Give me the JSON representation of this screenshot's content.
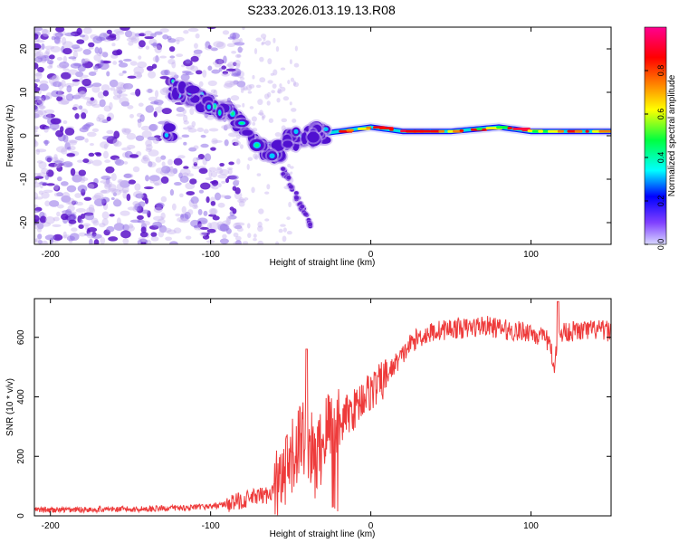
{
  "figure": {
    "title": "S233.2026.013.19.13.R08"
  },
  "colors": {
    "snr_line": "#ee3b3b",
    "spectrogram_faint": "#c8b4f0",
    "spectrogram_strong": "#5a14c8",
    "axis": "#000000"
  },
  "chart_data": [
    {
      "type": "heatmap",
      "name": "spectrogram",
      "title": "",
      "xlabel": "Height of straight line (km)",
      "ylabel": "Frequency (Hz)",
      "xlim": [
        -210,
        150
      ],
      "ylim": [
        -25,
        25
      ],
      "xticks": [
        -200,
        -100,
        0,
        100
      ],
      "yticks": [
        20,
        10,
        0,
        -10,
        -20
      ],
      "colorbar": {
        "label": "Normalized spectral amplitude",
        "range": [
          0,
          1
        ],
        "ticks": [
          0.0,
          0.2,
          0.4,
          0.6,
          0.8
        ],
        "colormap": [
          "#c8c8ff",
          "#7800ff",
          "#0000ff",
          "#00ffff",
          "#00ff00",
          "#ffff00",
          "#ff8000",
          "#ff0000",
          "#ff0080"
        ]
      },
      "ridge_track": {
        "description_points_km_hz": [
          [
            -125,
            11
          ],
          [
            -110,
            9
          ],
          [
            -95,
            6
          ],
          [
            -80,
            3
          ],
          [
            -70,
            -2
          ],
          [
            -60,
            -4
          ],
          [
            -50,
            -1
          ],
          [
            -40,
            0
          ],
          [
            -20,
            1
          ],
          [
            0,
            2
          ],
          [
            20,
            1
          ],
          [
            50,
            1
          ],
          [
            80,
            2
          ],
          [
            100,
            1
          ],
          [
            150,
            1
          ]
        ]
      },
      "branch_track": {
        "description_points_km_hz": [
          [
            -55,
            -8
          ],
          [
            -50,
            -11
          ],
          [
            -45,
            -15
          ],
          [
            -40,
            -19
          ],
          [
            -36,
            -22
          ]
        ]
      }
    },
    {
      "type": "line",
      "name": "snr",
      "title": "",
      "xlabel": "Height of straight line (km)",
      "ylabel": "SNR (10 * v/v)",
      "xlim": [
        -210,
        150
      ],
      "ylim": [
        0,
        730
      ],
      "xticks": [
        -200,
        -100,
        0,
        100
      ],
      "yticks": [
        0,
        200,
        400,
        600
      ],
      "series": [
        {
          "name": "SNR",
          "x": [
            -210,
            -190,
            -170,
            -150,
            -130,
            -110,
            -95,
            -85,
            -75,
            -65,
            -55,
            -50,
            -45,
            -40,
            -35,
            -30,
            -25,
            -20,
            -15,
            -10,
            -5,
            0,
            5,
            10,
            15,
            20,
            25,
            30,
            35,
            40,
            50,
            60,
            70,
            80,
            90,
            100,
            105,
            110,
            115,
            120,
            130,
            140,
            150
          ],
          "values": [
            20,
            20,
            22,
            22,
            25,
            28,
            35,
            45,
            60,
            70,
            110,
            170,
            250,
            280,
            170,
            250,
            320,
            290,
            340,
            360,
            400,
            420,
            440,
            470,
            510,
            540,
            580,
            600,
            610,
            620,
            630,
            630,
            640,
            630,
            620,
            620,
            600,
            590,
            560,
            620,
            620,
            625,
            620
          ]
        }
      ]
    }
  ]
}
